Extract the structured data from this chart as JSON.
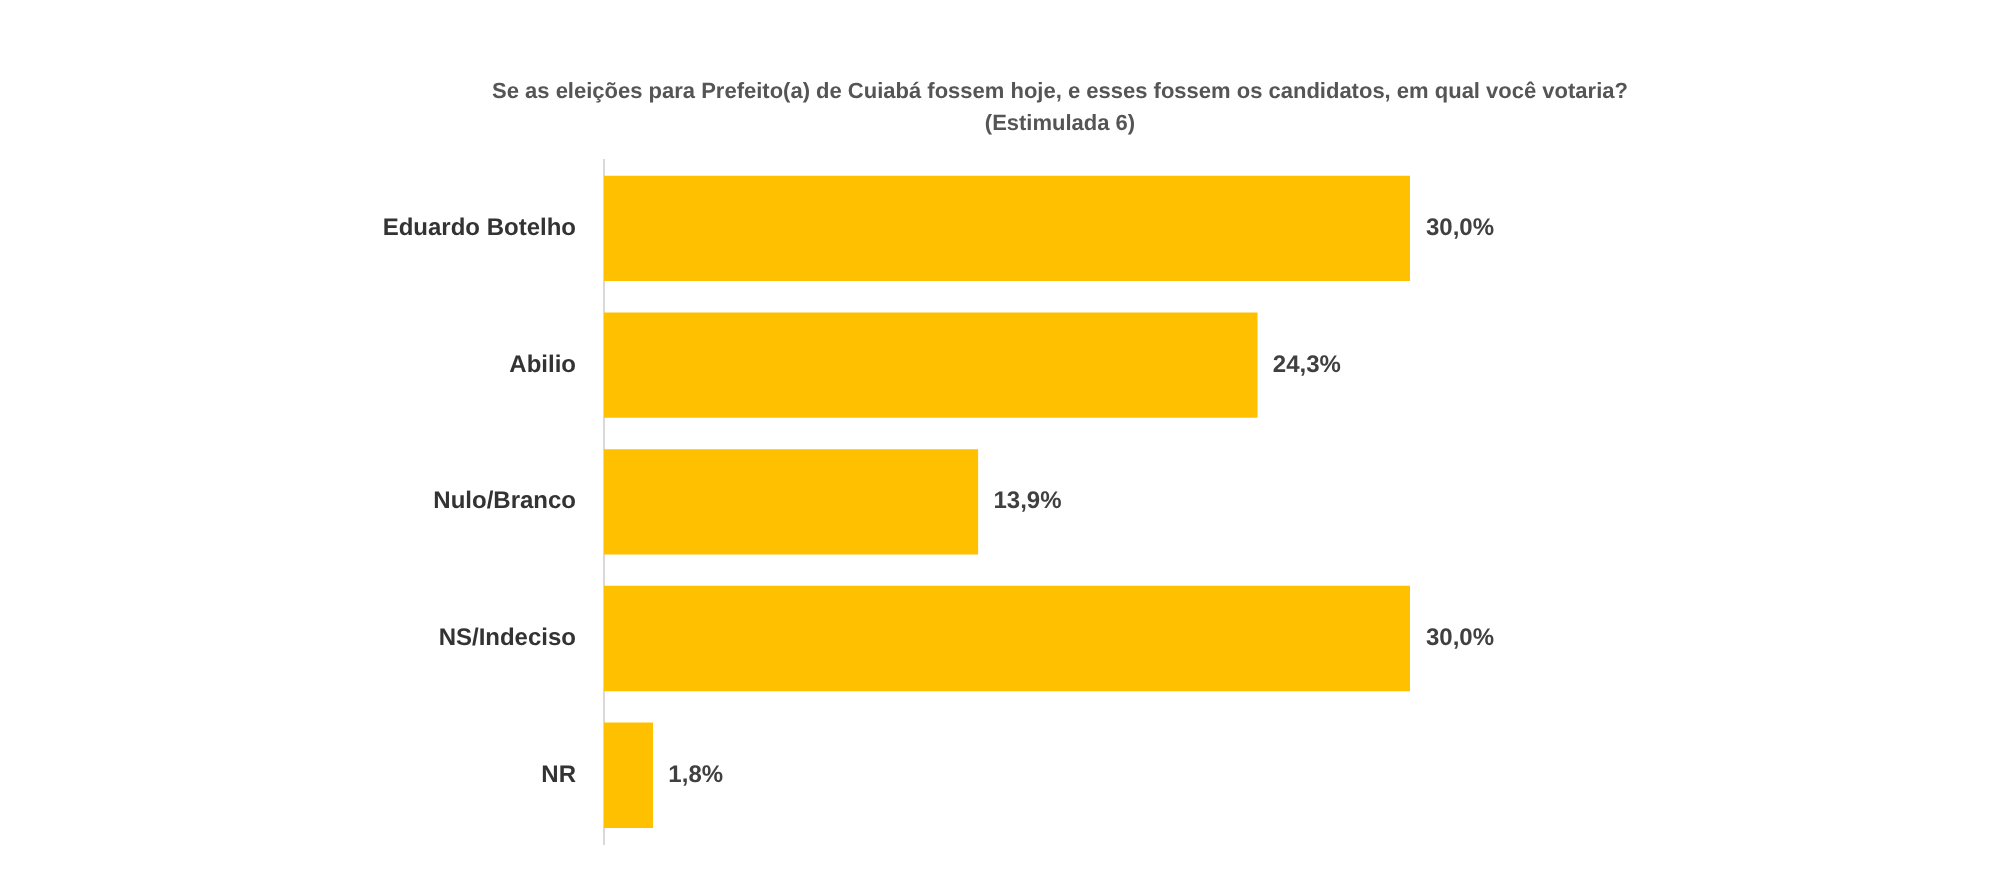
{
  "chart_data": {
    "type": "bar",
    "orientation": "horizontal",
    "title": "Se as eleições para Prefeito(a) de Cuiabá fossem hoje, e esses fossem os candidatos, em qual você votaria? (Estimulada 6)",
    "categories": [
      "Eduardo Botelho",
      "Abilio",
      "Nulo/Branco",
      "NS/Indeciso",
      "NR"
    ],
    "values": [
      30.0,
      24.3,
      13.9,
      30.0,
      1.8
    ],
    "value_labels": [
      "30,0%",
      "24,3%",
      "13,9%",
      "30,0%",
      "1,8%"
    ],
    "color": "#ffc000"
  }
}
